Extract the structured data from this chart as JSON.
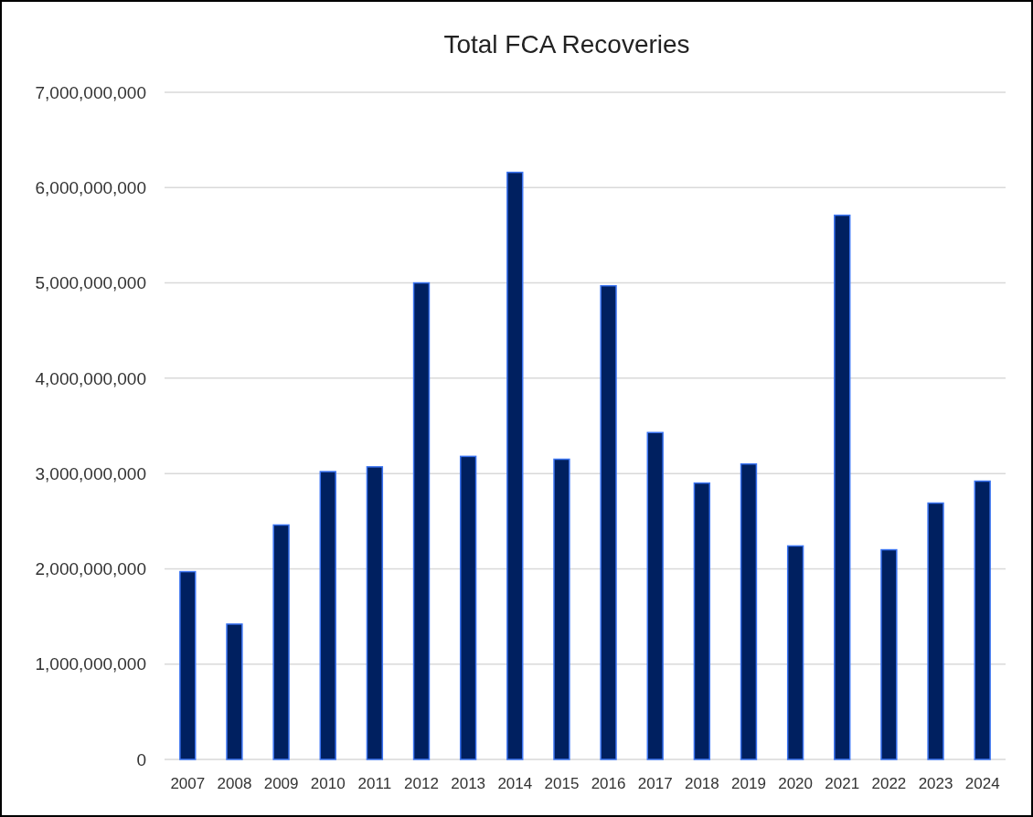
{
  "chart_data": {
    "type": "bar",
    "title": "Total FCA Recoveries",
    "categories": [
      "2007",
      "2008",
      "2009",
      "2010",
      "2011",
      "2012",
      "2013",
      "2014",
      "2015",
      "2016",
      "2017",
      "2018",
      "2019",
      "2020",
      "2021",
      "2022",
      "2023",
      "2024"
    ],
    "series": [
      {
        "color": "#002060",
        "values": [
          1970000000,
          1420000000,
          2460000000,
          3020000000,
          3070000000,
          5000000000,
          3180000000,
          6160000000,
          3150000000,
          4970000000,
          3430000000,
          2900000000,
          3100000000,
          2240000000,
          5710000000,
          2200000000,
          2690000000,
          2920000000
        ]
      }
    ],
    "ylim": [
      0,
      7000000000
    ],
    "yticks": [
      {
        "value": 0,
        "label": "0"
      },
      {
        "value": 1000000000,
        "label": "1,000,000,000"
      },
      {
        "value": 2000000000,
        "label": "2,000,000,000"
      },
      {
        "value": 3000000000,
        "label": "3,000,000,000"
      },
      {
        "value": 4000000000,
        "label": "4,000,000,000"
      },
      {
        "value": 5000000000,
        "label": "5,000,000,000"
      },
      {
        "value": 6000000000,
        "label": "6,000,000,000"
      },
      {
        "value": 7000000000,
        "label": "7,000,000,000"
      }
    ],
    "grid": "y"
  }
}
